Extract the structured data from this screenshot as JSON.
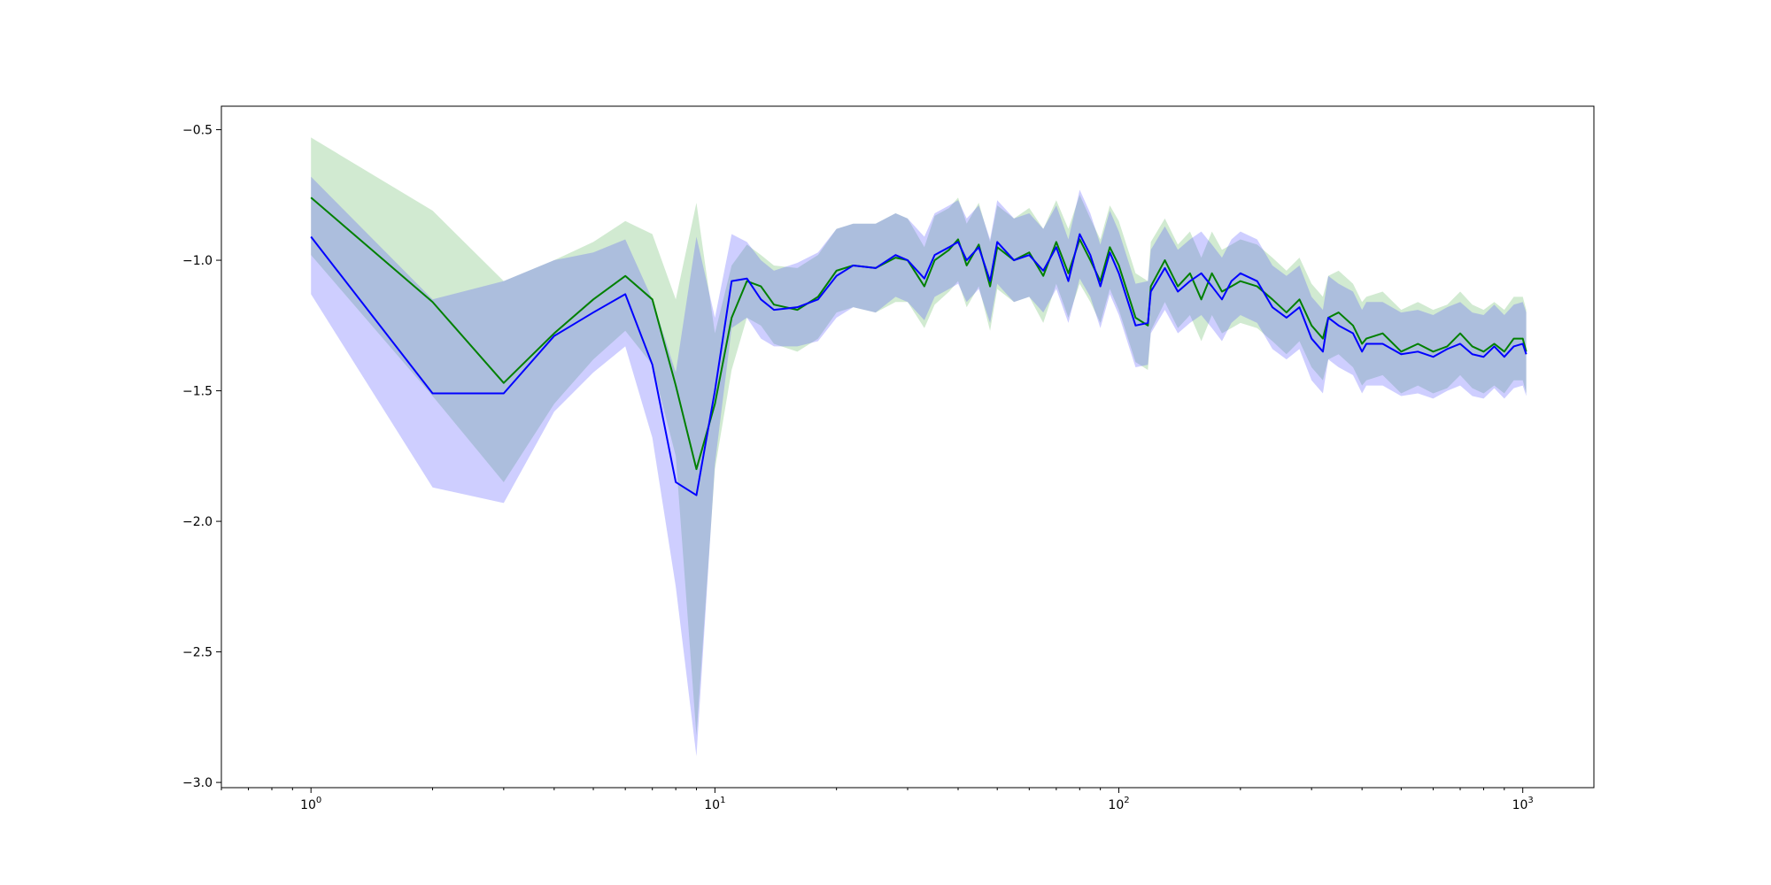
{
  "chart_data": {
    "type": "line",
    "title": "",
    "xlabel": "",
    "ylabel": "",
    "xscale": "log",
    "xlim": [
      0.6,
      1500
    ],
    "ylim": [
      -3.02,
      -0.41
    ],
    "grid": false,
    "legend": "none",
    "x_ticks": [
      {
        "value": 1,
        "base": "10",
        "exp": "0"
      },
      {
        "value": 10,
        "base": "10",
        "exp": "1"
      },
      {
        "value": 100,
        "base": "10",
        "exp": "2"
      },
      {
        "value": 1000,
        "base": "10",
        "exp": "3"
      }
    ],
    "y_ticks": [
      {
        "value": -0.5,
        "label": "−0.5"
      },
      {
        "value": -1.0,
        "label": "−1.0"
      },
      {
        "value": -1.5,
        "label": "−1.5"
      },
      {
        "value": -2.0,
        "label": "−2.0"
      },
      {
        "value": -2.5,
        "label": "−2.5"
      },
      {
        "value": -3.0,
        "label": "−3.0"
      }
    ],
    "series": [
      {
        "color": "#008000",
        "band_color": "#2ca02c",
        "band_opacity": 0.22,
        "x": [
          1,
          2,
          3,
          4,
          5,
          6,
          7,
          8,
          9,
          10,
          11,
          12,
          13,
          14,
          16,
          18,
          20,
          22,
          25,
          28,
          30,
          33,
          35,
          38,
          40,
          42,
          45,
          48,
          50,
          55,
          60,
          65,
          70,
          75,
          80,
          85,
          90,
          95,
          100,
          110,
          118,
          120,
          130,
          140,
          150,
          160,
          170,
          180,
          190,
          200,
          220,
          240,
          260,
          280,
          300,
          320,
          330,
          350,
          380,
          400,
          410,
          450,
          500,
          550,
          600,
          650,
          700,
          750,
          800,
          850,
          900,
          950,
          1000,
          1020
        ],
        "y": [
          -0.76,
          -1.16,
          -1.47,
          -1.28,
          -1.15,
          -1.06,
          -1.15,
          -1.48,
          -1.8,
          -1.55,
          -1.22,
          -1.08,
          -1.1,
          -1.17,
          -1.19,
          -1.14,
          -1.04,
          -1.02,
          -1.03,
          -0.99,
          -1.0,
          -1.1,
          -1.0,
          -0.96,
          -0.92,
          -1.02,
          -0.94,
          -1.1,
          -0.95,
          -1.0,
          -0.97,
          -1.06,
          -0.93,
          -1.05,
          -0.92,
          -1.0,
          -1.08,
          -0.95,
          -1.02,
          -1.22,
          -1.25,
          -1.1,
          -1.0,
          -1.1,
          -1.05,
          -1.15,
          -1.05,
          -1.12,
          -1.1,
          -1.08,
          -1.1,
          -1.15,
          -1.2,
          -1.15,
          -1.25,
          -1.3,
          -1.22,
          -1.2,
          -1.25,
          -1.32,
          -1.3,
          -1.28,
          -1.35,
          -1.32,
          -1.35,
          -1.33,
          -1.28,
          -1.33,
          -1.35,
          -1.32,
          -1.35,
          -1.3,
          -1.3,
          -1.35
        ],
        "upper": [
          -0.53,
          -0.81,
          -1.08,
          -1.0,
          -0.93,
          -0.85,
          -0.9,
          -1.15,
          -0.78,
          -1.28,
          -1.02,
          -0.94,
          -0.98,
          -1.02,
          -1.03,
          -0.98,
          -0.88,
          -0.86,
          -0.86,
          -0.82,
          -0.84,
          -0.95,
          -0.83,
          -0.8,
          -0.76,
          -0.86,
          -0.78,
          -0.93,
          -0.79,
          -0.84,
          -0.8,
          -0.88,
          -0.77,
          -0.88,
          -0.75,
          -0.84,
          -0.92,
          -0.79,
          -0.85,
          -1.05,
          -1.08,
          -0.93,
          -0.84,
          -0.94,
          -0.89,
          -0.99,
          -0.89,
          -0.96,
          -0.94,
          -0.92,
          -0.94,
          -0.99,
          -1.04,
          -0.99,
          -1.09,
          -1.14,
          -1.06,
          -1.04,
          -1.09,
          -1.16,
          -1.14,
          -1.12,
          -1.19,
          -1.16,
          -1.19,
          -1.17,
          -1.12,
          -1.17,
          -1.19,
          -1.16,
          -1.19,
          -1.14,
          -1.14,
          -1.19
        ],
        "lower": [
          -0.98,
          -1.52,
          -1.85,
          -1.55,
          -1.38,
          -1.27,
          -1.4,
          -1.75,
          -2.82,
          -1.8,
          -1.42,
          -1.22,
          -1.25,
          -1.32,
          -1.35,
          -1.3,
          -1.2,
          -1.18,
          -1.2,
          -1.16,
          -1.16,
          -1.26,
          -1.17,
          -1.12,
          -1.08,
          -1.18,
          -1.1,
          -1.27,
          -1.11,
          -1.16,
          -1.14,
          -1.24,
          -1.09,
          -1.22,
          -1.09,
          -1.16,
          -1.24,
          -1.11,
          -1.19,
          -1.39,
          -1.42,
          -1.27,
          -1.16,
          -1.26,
          -1.21,
          -1.31,
          -1.21,
          -1.28,
          -1.26,
          -1.24,
          -1.26,
          -1.31,
          -1.36,
          -1.31,
          -1.41,
          -1.46,
          -1.38,
          -1.36,
          -1.41,
          -1.48,
          -1.46,
          -1.44,
          -1.51,
          -1.48,
          -1.51,
          -1.49,
          -1.44,
          -1.49,
          -1.51,
          -1.48,
          -1.51,
          -1.46,
          -1.46,
          -1.51
        ]
      },
      {
        "color": "#0000ff",
        "band_color": "#4040ff",
        "band_opacity": 0.26,
        "x": [
          1,
          2,
          3,
          4,
          5,
          6,
          7,
          8,
          9,
          10,
          11,
          12,
          13,
          14,
          16,
          18,
          20,
          22,
          25,
          28,
          30,
          33,
          35,
          38,
          40,
          42,
          45,
          48,
          50,
          55,
          60,
          65,
          70,
          75,
          80,
          85,
          90,
          95,
          100,
          110,
          118,
          120,
          130,
          140,
          150,
          160,
          170,
          180,
          190,
          200,
          220,
          240,
          260,
          280,
          300,
          320,
          330,
          350,
          380,
          400,
          410,
          450,
          500,
          550,
          600,
          650,
          700,
          750,
          800,
          850,
          900,
          950,
          1000,
          1020
        ],
        "y": [
          -0.91,
          -1.51,
          -1.51,
          -1.29,
          -1.2,
          -1.13,
          -1.4,
          -1.85,
          -1.9,
          -1.5,
          -1.08,
          -1.07,
          -1.15,
          -1.19,
          -1.18,
          -1.15,
          -1.06,
          -1.02,
          -1.03,
          -0.98,
          -1.0,
          -1.07,
          -0.98,
          -0.95,
          -0.93,
          -1.0,
          -0.95,
          -1.08,
          -0.93,
          -1.0,
          -0.98,
          -1.04,
          -0.95,
          -1.08,
          -0.9,
          -0.98,
          -1.1,
          -0.97,
          -1.05,
          -1.25,
          -1.24,
          -1.12,
          -1.03,
          -1.12,
          -1.08,
          -1.05,
          -1.1,
          -1.15,
          -1.08,
          -1.05,
          -1.08,
          -1.18,
          -1.22,
          -1.18,
          -1.3,
          -1.35,
          -1.22,
          -1.25,
          -1.28,
          -1.35,
          -1.32,
          -1.32,
          -1.36,
          -1.35,
          -1.37,
          -1.34,
          -1.32,
          -1.36,
          -1.37,
          -1.33,
          -1.37,
          -1.33,
          -1.32,
          -1.36
        ],
        "upper": [
          -0.68,
          -1.15,
          -1.08,
          -1.0,
          -0.97,
          -0.92,
          -1.15,
          -1.43,
          -0.91,
          -1.22,
          -0.9,
          -0.93,
          -1.0,
          -1.04,
          -1.01,
          -0.97,
          -0.88,
          -0.86,
          -0.86,
          -0.82,
          -0.84,
          -0.91,
          -0.82,
          -0.79,
          -0.77,
          -0.84,
          -0.79,
          -0.92,
          -0.77,
          -0.84,
          -0.82,
          -0.88,
          -0.79,
          -0.92,
          -0.73,
          -0.82,
          -0.94,
          -0.81,
          -0.89,
          -1.09,
          -1.08,
          -0.96,
          -0.87,
          -0.96,
          -0.92,
          -0.89,
          -0.94,
          -0.99,
          -0.92,
          -0.89,
          -0.92,
          -1.02,
          -1.06,
          -1.02,
          -1.14,
          -1.19,
          -1.06,
          -1.09,
          -1.12,
          -1.19,
          -1.16,
          -1.16,
          -1.2,
          -1.19,
          -1.21,
          -1.18,
          -1.16,
          -1.2,
          -1.21,
          -1.17,
          -1.21,
          -1.17,
          -1.16,
          -1.2
        ],
        "lower": [
          -1.13,
          -1.87,
          -1.93,
          -1.58,
          -1.43,
          -1.33,
          -1.68,
          -2.25,
          -2.9,
          -1.78,
          -1.26,
          -1.22,
          -1.3,
          -1.33,
          -1.33,
          -1.31,
          -1.22,
          -1.18,
          -1.2,
          -1.14,
          -1.16,
          -1.23,
          -1.14,
          -1.11,
          -1.09,
          -1.16,
          -1.11,
          -1.24,
          -1.09,
          -1.16,
          -1.14,
          -1.2,
          -1.11,
          -1.24,
          -1.07,
          -1.14,
          -1.26,
          -1.13,
          -1.21,
          -1.41,
          -1.4,
          -1.28,
          -1.19,
          -1.28,
          -1.24,
          -1.21,
          -1.26,
          -1.31,
          -1.24,
          -1.21,
          -1.24,
          -1.34,
          -1.38,
          -1.34,
          -1.46,
          -1.51,
          -1.38,
          -1.41,
          -1.44,
          -1.51,
          -1.48,
          -1.48,
          -1.52,
          -1.51,
          -1.53,
          -1.5,
          -1.48,
          -1.52,
          -1.53,
          -1.49,
          -1.53,
          -1.49,
          -1.48,
          -1.52
        ]
      }
    ]
  }
}
